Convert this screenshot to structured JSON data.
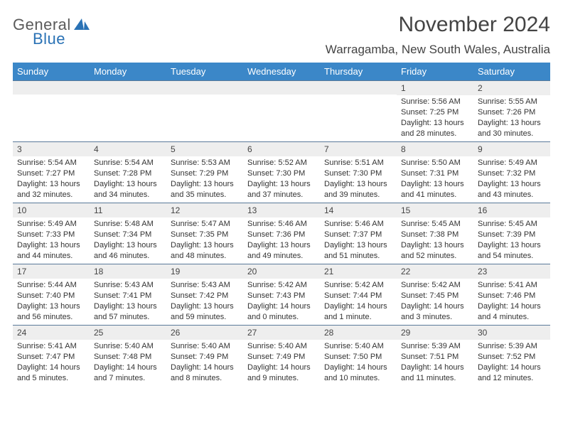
{
  "logo": {
    "word1": "General",
    "word2": "Blue",
    "color1": "#5a5a5a",
    "color2": "#2a72b5"
  },
  "title": "November 2024",
  "location": "Warragamba, New South Wales, Australia",
  "header_bg": "#3b87c8",
  "header_fg": "#ffffff",
  "daynum_bg": "#eeeeee",
  "rule_color": "#5a7a9a",
  "columns": [
    "Sunday",
    "Monday",
    "Tuesday",
    "Wednesday",
    "Thursday",
    "Friday",
    "Saturday"
  ],
  "weeks": [
    [
      null,
      null,
      null,
      null,
      null,
      {
        "d": "1",
        "sr": "5:56 AM",
        "ss": "7:25 PM",
        "dl": "13 hours and 28 minutes."
      },
      {
        "d": "2",
        "sr": "5:55 AM",
        "ss": "7:26 PM",
        "dl": "13 hours and 30 minutes."
      }
    ],
    [
      {
        "d": "3",
        "sr": "5:54 AM",
        "ss": "7:27 PM",
        "dl": "13 hours and 32 minutes."
      },
      {
        "d": "4",
        "sr": "5:54 AM",
        "ss": "7:28 PM",
        "dl": "13 hours and 34 minutes."
      },
      {
        "d": "5",
        "sr": "5:53 AM",
        "ss": "7:29 PM",
        "dl": "13 hours and 35 minutes."
      },
      {
        "d": "6",
        "sr": "5:52 AM",
        "ss": "7:30 PM",
        "dl": "13 hours and 37 minutes."
      },
      {
        "d": "7",
        "sr": "5:51 AM",
        "ss": "7:30 PM",
        "dl": "13 hours and 39 minutes."
      },
      {
        "d": "8",
        "sr": "5:50 AM",
        "ss": "7:31 PM",
        "dl": "13 hours and 41 minutes."
      },
      {
        "d": "9",
        "sr": "5:49 AM",
        "ss": "7:32 PM",
        "dl": "13 hours and 43 minutes."
      }
    ],
    [
      {
        "d": "10",
        "sr": "5:49 AM",
        "ss": "7:33 PM",
        "dl": "13 hours and 44 minutes."
      },
      {
        "d": "11",
        "sr": "5:48 AM",
        "ss": "7:34 PM",
        "dl": "13 hours and 46 minutes."
      },
      {
        "d": "12",
        "sr": "5:47 AM",
        "ss": "7:35 PM",
        "dl": "13 hours and 48 minutes."
      },
      {
        "d": "13",
        "sr": "5:46 AM",
        "ss": "7:36 PM",
        "dl": "13 hours and 49 minutes."
      },
      {
        "d": "14",
        "sr": "5:46 AM",
        "ss": "7:37 PM",
        "dl": "13 hours and 51 minutes."
      },
      {
        "d": "15",
        "sr": "5:45 AM",
        "ss": "7:38 PM",
        "dl": "13 hours and 52 minutes."
      },
      {
        "d": "16",
        "sr": "5:45 AM",
        "ss": "7:39 PM",
        "dl": "13 hours and 54 minutes."
      }
    ],
    [
      {
        "d": "17",
        "sr": "5:44 AM",
        "ss": "7:40 PM",
        "dl": "13 hours and 56 minutes."
      },
      {
        "d": "18",
        "sr": "5:43 AM",
        "ss": "7:41 PM",
        "dl": "13 hours and 57 minutes."
      },
      {
        "d": "19",
        "sr": "5:43 AM",
        "ss": "7:42 PM",
        "dl": "13 hours and 59 minutes."
      },
      {
        "d": "20",
        "sr": "5:42 AM",
        "ss": "7:43 PM",
        "dl": "14 hours and 0 minutes."
      },
      {
        "d": "21",
        "sr": "5:42 AM",
        "ss": "7:44 PM",
        "dl": "14 hours and 1 minute."
      },
      {
        "d": "22",
        "sr": "5:42 AM",
        "ss": "7:45 PM",
        "dl": "14 hours and 3 minutes."
      },
      {
        "d": "23",
        "sr": "5:41 AM",
        "ss": "7:46 PM",
        "dl": "14 hours and 4 minutes."
      }
    ],
    [
      {
        "d": "24",
        "sr": "5:41 AM",
        "ss": "7:47 PM",
        "dl": "14 hours and 5 minutes."
      },
      {
        "d": "25",
        "sr": "5:40 AM",
        "ss": "7:48 PM",
        "dl": "14 hours and 7 minutes."
      },
      {
        "d": "26",
        "sr": "5:40 AM",
        "ss": "7:49 PM",
        "dl": "14 hours and 8 minutes."
      },
      {
        "d": "27",
        "sr": "5:40 AM",
        "ss": "7:49 PM",
        "dl": "14 hours and 9 minutes."
      },
      {
        "d": "28",
        "sr": "5:40 AM",
        "ss": "7:50 PM",
        "dl": "14 hours and 10 minutes."
      },
      {
        "d": "29",
        "sr": "5:39 AM",
        "ss": "7:51 PM",
        "dl": "14 hours and 11 minutes."
      },
      {
        "d": "30",
        "sr": "5:39 AM",
        "ss": "7:52 PM",
        "dl": "14 hours and 12 minutes."
      }
    ]
  ],
  "labels": {
    "sunrise": "Sunrise:",
    "sunset": "Sunset:",
    "daylight": "Daylight:"
  }
}
